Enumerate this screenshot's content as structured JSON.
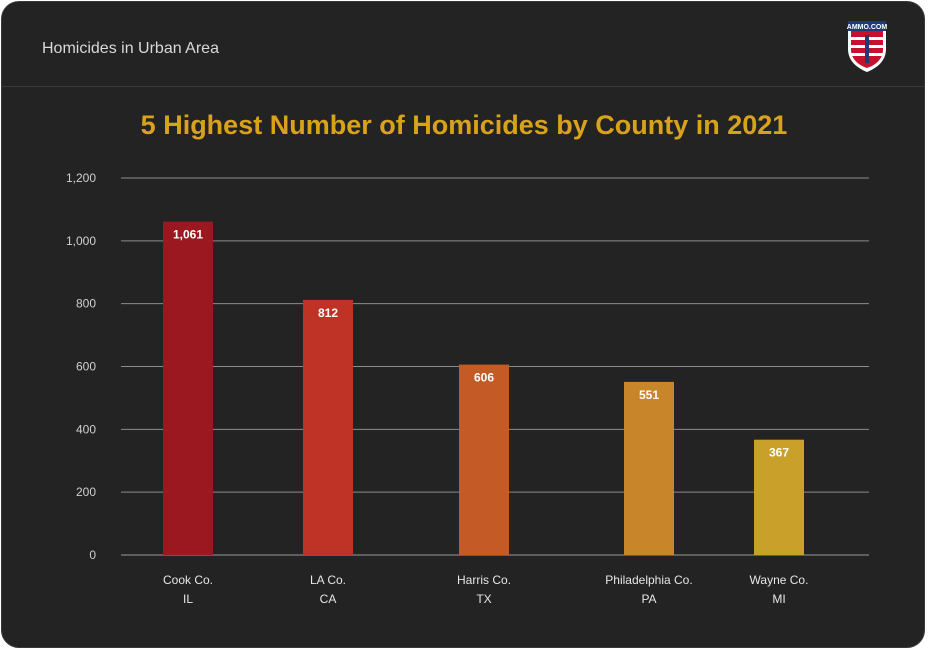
{
  "header": {
    "title": "Homicides in Urban Area",
    "logo_text": "AMMO.COM"
  },
  "chart_data": {
    "type": "bar",
    "title": "5 Highest Number of Homicides by County in 2021",
    "xlabel": "",
    "ylabel": "",
    "ylim": [
      0,
      1200
    ],
    "yticks": [
      0,
      200,
      400,
      600,
      800,
      1000,
      1200
    ],
    "ytick_labels": [
      "0",
      "200",
      "400",
      "600",
      "800",
      "1,000",
      "1,200"
    ],
    "grid": true,
    "categories": [
      [
        "Cook Co.",
        "IL"
      ],
      [
        "LA Co.",
        "CA"
      ],
      [
        "Harris Co.",
        "TX"
      ],
      [
        "Philadelphia Co.",
        "PA"
      ],
      [
        "Wayne Co.",
        "MI"
      ]
    ],
    "values": [
      1061,
      812,
      606,
      551,
      367
    ],
    "value_labels": [
      "1,061",
      "812",
      "606",
      "551",
      "367"
    ],
    "colors": [
      "#9b1820",
      "#bf3326",
      "#c45a26",
      "#c9852a",
      "#c9a02a"
    ]
  }
}
